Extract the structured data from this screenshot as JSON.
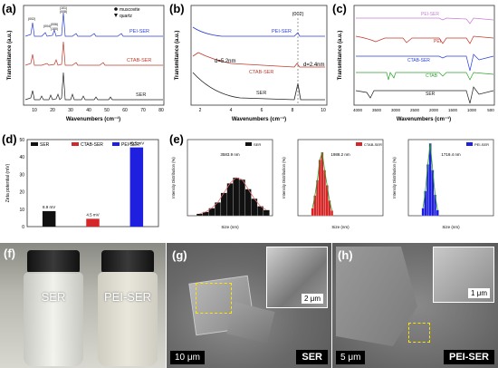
{
  "figure": {
    "panel_labels": [
      "(a)",
      "(b)",
      "(c)",
      "(d)",
      "(e)",
      "(f)",
      "(g)",
      "(h)"
    ]
  },
  "panel_a": {
    "ylabel": "Transmitance (a.u.)",
    "xlabel": "Wavenumbers (cm⁻¹)",
    "x_ticks": [
      "10",
      "20",
      "30",
      "40",
      "50",
      "60",
      "70",
      "80"
    ],
    "legend": [
      "muscovite",
      "quartz"
    ],
    "peak_labels": [
      "(002)",
      "(004)",
      "(006)",
      "(100)",
      "(101)",
      "(008)"
    ],
    "traces": [
      "PEI-SER",
      "CTAB-SER",
      "SER"
    ],
    "colors": {
      "PEI-SER": "#2b3fd6",
      "CTAB-SER": "#c0392b",
      "SER": "#222222"
    }
  },
  "panel_b": {
    "ylabel": "Transmitance (a.u.)",
    "xlabel": "Wavenumbers (cm⁻¹)",
    "x_ticks": [
      "2",
      "4",
      "6",
      "8",
      "10"
    ],
    "peak_label": "(002)",
    "annotations": [
      "d=5.2nm",
      "d=2.4nm"
    ],
    "traces": [
      "PEI-SER",
      "CTAB-SER",
      "SER"
    ]
  },
  "panel_c": {
    "ylabel": "Transmitance (a.u.)",
    "xlabel": "Wavenumbers (cm⁻¹)",
    "x_ticks": [
      "4000",
      "3500",
      "3000",
      "2500",
      "2000",
      "1500",
      "1000",
      "500"
    ],
    "traces": [
      "PEI-SER",
      "PEI",
      "CTAB-SER",
      "CTAB",
      "SER"
    ],
    "colors": [
      "#c77dd6",
      "#c0392b",
      "#2b3fd6",
      "#2ea02e",
      "#222222"
    ]
  },
  "chart_data": [
    {
      "type": "bar",
      "panel": "d",
      "ylabel": "Zeta potential (mV)",
      "categories": [
        "SER",
        "CTAB-SER",
        "PEI-SER"
      ],
      "values": [
        8.9,
        4.5,
        45.5
      ],
      "value_labels": [
        "8.9 mV",
        "4.5 mV",
        "45.5 mV"
      ],
      "colors": [
        "#111111",
        "#d62728",
        "#1f1fe0"
      ],
      "ylim": [
        0,
        50
      ],
      "y_ticks": [
        "0",
        "10",
        "20",
        "30",
        "40",
        "50"
      ]
    },
    {
      "type": "bar",
      "panel": "e1",
      "series_name": "SER",
      "xlabel": "Size (nm)",
      "ylabel": "Intensity Distribution (%)",
      "annotation": "3583.9 nm",
      "x": [
        1000,
        1500,
        2000,
        2500,
        3000,
        3500,
        4000,
        4500,
        5000,
        5500,
        6000,
        6500
      ],
      "values": [
        1,
        2,
        4,
        7,
        12,
        17,
        20,
        19,
        14,
        9,
        5,
        3
      ],
      "color": "#111111",
      "ylim": [
        0,
        40
      ]
    },
    {
      "type": "bar",
      "panel": "e2",
      "series_name": "CTAB-SER",
      "xlabel": "Size (nm)",
      "ylabel": "Intensity Distribution (%)",
      "annotation": "1988.2 nm",
      "x": [
        1200,
        1400,
        1600,
        1800,
        2000,
        2200,
        2400,
        2600,
        2800
      ],
      "values": [
        3,
        8,
        14,
        22,
        25,
        18,
        12,
        6,
        2
      ],
      "color": "#d62728",
      "ylim": [
        0,
        30
      ]
    },
    {
      "type": "bar",
      "panel": "e3",
      "series_name": "PEI-SER",
      "xlabel": "Size (nm)",
      "ylabel": "Intensity Distribution (%)",
      "annotation": "1719.4 nm",
      "x": [
        1200,
        1400,
        1600,
        1800,
        2000,
        2200,
        2400
      ],
      "values": [
        4,
        13,
        27,
        38,
        24,
        11,
        3
      ],
      "color": "#1f1fe0",
      "ylim": [
        0,
        40
      ]
    }
  ],
  "panel_f": {
    "labels": [
      "SER",
      "PEI-SER"
    ]
  },
  "panel_g": {
    "scale_main": "10 μm",
    "scale_inset": "2 μm",
    "sample": "SER"
  },
  "panel_h": {
    "scale_main": "5 μm",
    "scale_inset": "1 μm",
    "sample": "PEI-SER"
  }
}
